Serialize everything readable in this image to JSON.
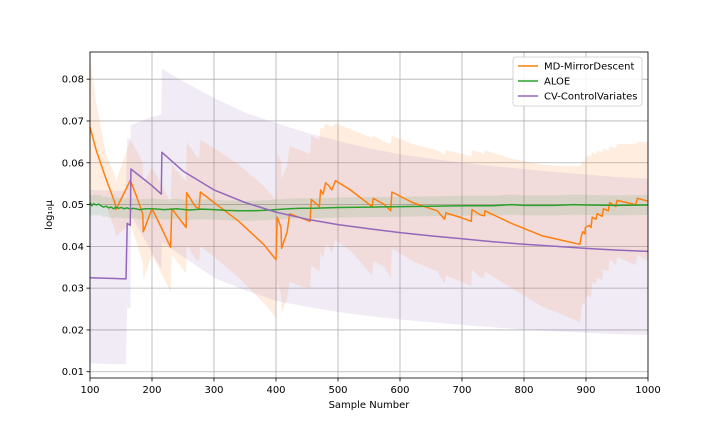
{
  "chart_data": {
    "type": "line",
    "xlabel": "Sample Number",
    "ylabel": "log₁₀μ",
    "xlim": [
      100,
      1000
    ],
    "ylim": [
      0.0085,
      0.0865
    ],
    "x_ticks": [
      100,
      200,
      300,
      400,
      500,
      600,
      700,
      800,
      900,
      1000
    ],
    "y_ticks": [
      0.01,
      0.02,
      0.03,
      0.04,
      0.05,
      0.06,
      0.07,
      0.08
    ],
    "grid": true,
    "legend_position": "top-right",
    "series": [
      {
        "name": "MD-MirrorDescent",
        "color": "#ff7f0e",
        "x": [
          100,
          110,
          125,
          140,
          142,
          165,
          175,
          185,
          186,
          200,
          215,
          230,
          232,
          255,
          256,
          270,
          276,
          278,
          300,
          340,
          380,
          400,
          402,
          408,
          409,
          418,
          422,
          440,
          455,
          457,
          470,
          472,
          476,
          480,
          485,
          490,
          496,
          520,
          555,
          557,
          575,
          585,
          587,
          620,
          660,
          672,
          674,
          700,
          715,
          716,
          730,
          736,
          737,
          780,
          830,
          860,
          890,
          893,
          895,
          898,
          899,
          905,
          908,
          910,
          916,
          918,
          926,
          928,
          936,
          938,
          948,
          950,
          980,
          983,
          1000
        ],
        "y": [
          0.0685,
          0.063,
          0.0565,
          0.0505,
          0.0488,
          0.0558,
          0.052,
          0.0478,
          0.0435,
          0.049,
          0.0445,
          0.0398,
          0.049,
          0.0445,
          0.0528,
          0.0495,
          0.049,
          0.053,
          0.0505,
          0.046,
          0.0405,
          0.0368,
          0.047,
          0.0445,
          0.0395,
          0.0435,
          0.0478,
          0.0468,
          0.046,
          0.0512,
          0.0495,
          0.0535,
          0.0525,
          0.0552,
          0.0545,
          0.0535,
          0.0557,
          0.0535,
          0.0495,
          0.0515,
          0.05,
          0.0485,
          0.053,
          0.0505,
          0.0485,
          0.0465,
          0.048,
          0.0468,
          0.046,
          0.0488,
          0.0475,
          0.0473,
          0.0485,
          0.0455,
          0.0425,
          0.0415,
          0.0405,
          0.0428,
          0.0435,
          0.043,
          0.0445,
          0.045,
          0.0445,
          0.047,
          0.0465,
          0.0478,
          0.0472,
          0.049,
          0.0485,
          0.0505,
          0.0495,
          0.051,
          0.05,
          0.0515,
          0.0508
        ],
        "band_upper": [
          0.0855,
          0.0745,
          0.0625,
          0.057,
          0.0555,
          0.0655,
          0.063,
          0.06,
          0.055,
          0.059,
          0.055,
          0.0505,
          0.0595,
          0.0555,
          0.065,
          0.062,
          0.061,
          0.0655,
          0.0635,
          0.0595,
          0.0545,
          0.051,
          0.0625,
          0.0605,
          0.056,
          0.0595,
          0.064,
          0.063,
          0.062,
          0.0665,
          0.0655,
          0.0685,
          0.068,
          0.0695,
          0.069,
          0.0685,
          0.0695,
          0.068,
          0.066,
          0.0665,
          0.065,
          0.0645,
          0.0665,
          0.0645,
          0.063,
          0.062,
          0.063,
          0.0622,
          0.0615,
          0.063,
          0.0625,
          0.062,
          0.063,
          0.061,
          0.0595,
          0.0592,
          0.0592,
          0.06,
          0.0605,
          0.06,
          0.0612,
          0.0618,
          0.0615,
          0.0625,
          0.062,
          0.063,
          0.0625,
          0.0635,
          0.063,
          0.064,
          0.0635,
          0.0645,
          0.0645,
          0.065,
          0.065
        ],
        "band_lower": [
          0.05,
          0.0505,
          0.05,
          0.044,
          0.0425,
          0.0455,
          0.041,
          0.036,
          0.032,
          0.038,
          0.0335,
          0.029,
          0.038,
          0.0335,
          0.0405,
          0.037,
          0.0365,
          0.04,
          0.0375,
          0.0325,
          0.0265,
          0.0228,
          0.0315,
          0.0285,
          0.024,
          0.0275,
          0.0315,
          0.0305,
          0.03,
          0.0355,
          0.034,
          0.0385,
          0.037,
          0.0405,
          0.04,
          0.0385,
          0.0415,
          0.039,
          0.033,
          0.0365,
          0.035,
          0.0325,
          0.0395,
          0.0365,
          0.034,
          0.031,
          0.033,
          0.0315,
          0.0305,
          0.0345,
          0.0325,
          0.0325,
          0.034,
          0.03,
          0.0255,
          0.0238,
          0.0218,
          0.0255,
          0.0265,
          0.026,
          0.0278,
          0.0282,
          0.0275,
          0.0315,
          0.031,
          0.0325,
          0.032,
          0.0345,
          0.034,
          0.037,
          0.0355,
          0.0375,
          0.0355,
          0.038,
          0.0365
        ]
      },
      {
        "name": "ALOE",
        "color": "#2ca02c",
        "x": [
          100,
          103,
          106,
          110,
          114,
          118,
          122,
          126,
          130,
          134,
          138,
          142,
          146,
          150,
          155,
          160,
          165,
          170,
          180,
          190,
          200,
          220,
          240,
          260,
          280,
          300,
          320,
          340,
          360,
          380,
          400,
          420,
          440,
          460,
          480,
          500,
          550,
          600,
          650,
          700,
          750,
          780,
          800,
          850,
          880,
          900,
          950,
          1000
        ],
        "y": [
          0.0505,
          0.0497,
          0.0502,
          0.0499,
          0.0501,
          0.0497,
          0.0494,
          0.0496,
          0.0492,
          0.0494,
          0.049,
          0.0494,
          0.0491,
          0.0493,
          0.049,
          0.0492,
          0.0489,
          0.0491,
          0.0488,
          0.049,
          0.049,
          0.0488,
          0.049,
          0.0487,
          0.0489,
          0.0488,
          0.0486,
          0.0485,
          0.0485,
          0.0486,
          0.0488,
          0.049,
          0.0491,
          0.0491,
          0.0492,
          0.0493,
          0.0494,
          0.0495,
          0.0496,
          0.0497,
          0.0497,
          0.05,
          0.0498,
          0.0498,
          0.05,
          0.0499,
          0.0498,
          0.0499
        ],
        "band_upper": [
          0.0525,
          0.0521,
          0.0524,
          0.0522,
          0.0524,
          0.0521,
          0.0518,
          0.052,
          0.0516,
          0.0518,
          0.0514,
          0.0518,
          0.0515,
          0.0517,
          0.0514,
          0.0516,
          0.0513,
          0.0515,
          0.0512,
          0.0514,
          0.0514,
          0.0512,
          0.0514,
          0.0511,
          0.0513,
          0.0512,
          0.051,
          0.0509,
          0.0509,
          0.051,
          0.0512,
          0.0514,
          0.0515,
          0.0515,
          0.0516,
          0.0517,
          0.0518,
          0.0519,
          0.052,
          0.0521,
          0.0521,
          0.0524,
          0.0522,
          0.0522,
          0.0524,
          0.0523,
          0.0522,
          0.0523
        ],
        "band_lower": [
          0.0475,
          0.0473,
          0.0476,
          0.0474,
          0.0476,
          0.0473,
          0.047,
          0.0472,
          0.0468,
          0.047,
          0.0466,
          0.047,
          0.0467,
          0.0469,
          0.0466,
          0.0468,
          0.0465,
          0.0467,
          0.0464,
          0.0466,
          0.0466,
          0.0464,
          0.0466,
          0.0463,
          0.0465,
          0.0464,
          0.0462,
          0.0461,
          0.0461,
          0.0462,
          0.0464,
          0.0466,
          0.0467,
          0.0467,
          0.0468,
          0.0469,
          0.047,
          0.0471,
          0.0472,
          0.0473,
          0.0473,
          0.0476,
          0.0474,
          0.0474,
          0.0476,
          0.0475,
          0.0474,
          0.0475
        ]
      },
      {
        "name": "CV-ControlVariates",
        "color": "#9467bd",
        "x": [
          100,
          120,
          140,
          158,
          160,
          165,
          166,
          200,
          215,
          216,
          250,
          300,
          350,
          400,
          450,
          500,
          550,
          600,
          650,
          700,
          750,
          800,
          850,
          900,
          950,
          1000
        ],
        "y": [
          0.0325,
          0.0324,
          0.0323,
          0.0322,
          0.0455,
          0.045,
          0.0585,
          0.0545,
          0.0525,
          0.0625,
          0.058,
          0.0535,
          0.0505,
          0.0482,
          0.0465,
          0.0452,
          0.0442,
          0.0433,
          0.0425,
          0.0418,
          0.0411,
          0.0405,
          0.04,
          0.0395,
          0.0391,
          0.0388
        ],
        "band_upper": [
          0.0535,
          0.0534,
          0.0533,
          0.0532,
          0.066,
          0.0655,
          0.069,
          0.071,
          0.0715,
          0.0825,
          0.0795,
          0.0755,
          0.072,
          0.0695,
          0.0672,
          0.0652,
          0.0635,
          0.062,
          0.061,
          0.06,
          0.0592,
          0.0585,
          0.0578,
          0.0572,
          0.0566,
          0.0562
        ],
        "band_lower": [
          0.012,
          0.0119,
          0.0118,
          0.0118,
          0.0255,
          0.025,
          0.0475,
          0.0385,
          0.0345,
          0.041,
          0.0375,
          0.0325,
          0.0295,
          0.027,
          0.0255,
          0.0243,
          0.0233,
          0.0225,
          0.0218,
          0.0212,
          0.0206,
          0.0201,
          0.0197,
          0.0193,
          0.019,
          0.0188
        ]
      }
    ]
  }
}
